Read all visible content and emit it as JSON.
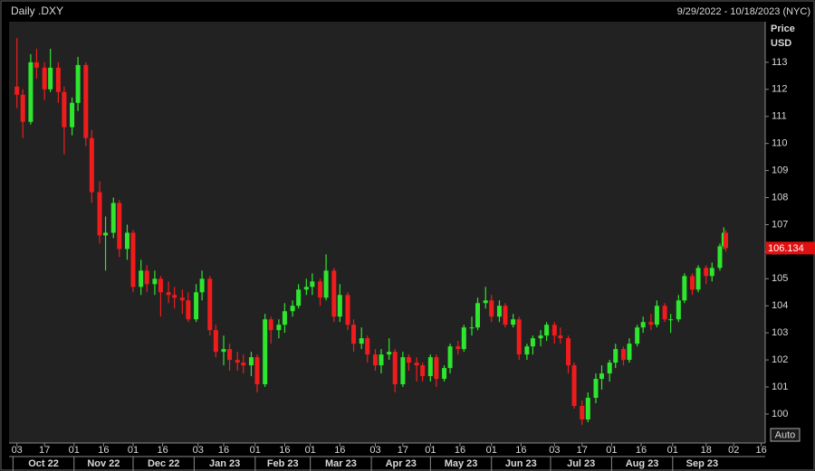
{
  "chart_data": {
    "type": "candlestick",
    "title": "Daily .DXY",
    "subtitle": "9/29/2022 - 10/18/2023 (NYC)",
    "y_label": "Price",
    "y_unit": "USD",
    "button": "Auto",
    "up_color": "#2ee62e",
    "down_color": "#f01c1c",
    "xlim": [
      "2022-09-29",
      "2023-10-18"
    ],
    "ylim": [
      98.93,
      114.5
    ],
    "yticks": [
      100,
      101,
      102,
      103,
      104,
      105,
      106,
      107,
      108,
      109,
      110,
      111,
      112,
      113
    ],
    "xticks": [
      {
        "value": "2022-10-03",
        "label": "03"
      },
      {
        "value": "2022-10-17",
        "label": "17"
      },
      {
        "value": "2022-11-01",
        "label": "01"
      },
      {
        "value": "2022-11-16",
        "label": "16"
      },
      {
        "value": "2022-12-01",
        "label": "01"
      },
      {
        "value": "2022-12-16",
        "label": "16"
      },
      {
        "value": "2023-01-03",
        "label": "03"
      },
      {
        "value": "2023-01-16",
        "label": "16"
      },
      {
        "value": "2023-02-01",
        "label": "01"
      },
      {
        "value": "2023-02-16",
        "label": "16"
      },
      {
        "value": "2023-03-01",
        "label": "01"
      },
      {
        "value": "2023-03-16",
        "label": "16"
      },
      {
        "value": "2023-04-03",
        "label": "03"
      },
      {
        "value": "2023-04-17",
        "label": "17"
      },
      {
        "value": "2023-05-01",
        "label": "01"
      },
      {
        "value": "2023-05-16",
        "label": "16"
      },
      {
        "value": "2023-06-01",
        "label": "01"
      },
      {
        "value": "2023-06-16",
        "label": "16"
      },
      {
        "value": "2023-07-03",
        "label": "03"
      },
      {
        "value": "2023-07-17",
        "label": "17"
      },
      {
        "value": "2023-08-01",
        "label": "01"
      },
      {
        "value": "2023-08-16",
        "label": "16"
      },
      {
        "value": "2023-09-01",
        "label": "01"
      },
      {
        "value": "2023-09-18",
        "label": "18"
      },
      {
        "value": "2023-10-02",
        "label": "02"
      },
      {
        "value": "2023-10-16",
        "label": "16"
      }
    ],
    "months": [
      {
        "value": "2022-10",
        "label": "Oct 22"
      },
      {
        "value": "2022-11",
        "label": "Nov 22"
      },
      {
        "value": "2022-12",
        "label": "Dec 22"
      },
      {
        "value": "2023-01",
        "label": "Jan 23"
      },
      {
        "value": "2023-02",
        "label": "Feb 23"
      },
      {
        "value": "2023-03",
        "label": "Mar 23"
      },
      {
        "value": "2023-04",
        "label": "Apr 23"
      },
      {
        "value": "2023-05",
        "label": "May 23"
      },
      {
        "value": "2023-06",
        "label": "Jun 23"
      },
      {
        "value": "2023-07",
        "label": "Jul 23"
      },
      {
        "value": "2023-08",
        "label": "Aug 23"
      },
      {
        "value": "2023-09",
        "label": "Sep 23"
      }
    ],
    "x": [
      "2022-10-03",
      "2022-10-06",
      "2022-10-10",
      "2022-10-13",
      "2022-10-17",
      "2022-10-20",
      "2022-10-24",
      "2022-10-27",
      "2022-10-31",
      "2022-11-03",
      "2022-11-07",
      "2022-11-10",
      "2022-11-14",
      "2022-11-17",
      "2022-11-21",
      "2022-11-24",
      "2022-11-28",
      "2022-12-01",
      "2022-12-05",
      "2022-12-08",
      "2022-12-12",
      "2022-12-15",
      "2022-12-19",
      "2022-12-22",
      "2022-12-26",
      "2022-12-29",
      "2023-01-02",
      "2023-01-05",
      "2023-01-09",
      "2023-01-12",
      "2023-01-16",
      "2023-01-19",
      "2023-01-23",
      "2023-01-26",
      "2023-01-30",
      "2023-02-02",
      "2023-02-06",
      "2023-02-09",
      "2023-02-13",
      "2023-02-16",
      "2023-02-20",
      "2023-02-23",
      "2023-02-27",
      "2023-03-02",
      "2023-03-06",
      "2023-03-09",
      "2023-03-13",
      "2023-03-16",
      "2023-03-20",
      "2023-03-23",
      "2023-03-27",
      "2023-03-30",
      "2023-04-03",
      "2023-04-06",
      "2023-04-10",
      "2023-04-13",
      "2023-04-17",
      "2023-04-20",
      "2023-04-24",
      "2023-04-27",
      "2023-05-01",
      "2023-05-04",
      "2023-05-08",
      "2023-05-11",
      "2023-05-15",
      "2023-05-18",
      "2023-05-22",
      "2023-05-25",
      "2023-05-29",
      "2023-06-01",
      "2023-06-05",
      "2023-06-08",
      "2023-06-12",
      "2023-06-15",
      "2023-06-19",
      "2023-06-22",
      "2023-06-26",
      "2023-06-29",
      "2023-07-03",
      "2023-07-06",
      "2023-07-10",
      "2023-07-13",
      "2023-07-17",
      "2023-07-20",
      "2023-07-24",
      "2023-07-27",
      "2023-07-31",
      "2023-08-03",
      "2023-08-07",
      "2023-08-10",
      "2023-08-14",
      "2023-08-17",
      "2023-08-21",
      "2023-08-24",
      "2023-08-28",
      "2023-08-31",
      "2023-09-04",
      "2023-09-07",
      "2023-09-11",
      "2023-09-14",
      "2023-09-18",
      "2023-09-21",
      "2023-09-25",
      "2023-09-27",
      "2023-09-28"
    ],
    "open": [
      112.1,
      111.8,
      110.8,
      113.0,
      112.8,
      112.0,
      112.8,
      111.9,
      110.6,
      111.5,
      112.9,
      110.2,
      108.2,
      106.6,
      106.7,
      107.8,
      106.1,
      106.7,
      104.7,
      105.3,
      104.8,
      105.0,
      104.5,
      104.4,
      104.3,
      104.2,
      103.5,
      104.5,
      105.0,
      103.1,
      102.3,
      102.4,
      102.0,
      101.9,
      101.8,
      102.1,
      101.1,
      103.5,
      103.1,
      103.3,
      103.8,
      104.0,
      104.6,
      104.7,
      104.9,
      104.3,
      105.3,
      103.6,
      104.4,
      103.3,
      102.6,
      102.8,
      102.2,
      101.8,
      102.2,
      102.3,
      101.1,
      102.1,
      101.9,
      101.8,
      101.4,
      102.1,
      101.3,
      101.7,
      102.5,
      102.4,
      103.2,
      103.2,
      104.1,
      104.2,
      103.6,
      104.0,
      103.3,
      103.5,
      102.2,
      102.5,
      102.8,
      102.9,
      103.3,
      102.9,
      102.8,
      101.8,
      100.3,
      99.8,
      100.6,
      101.3,
      101.5,
      101.9,
      102.4,
      102.0,
      102.6,
      103.2,
      103.4,
      103.3,
      104.0,
      103.5,
      103.5,
      104.2,
      105.1,
      104.6,
      105.4,
      105.1,
      105.4,
      106.2,
      106.7
    ],
    "high": [
      113.9,
      112.0,
      113.3,
      113.5,
      113.0,
      113.5,
      113.0,
      112.1,
      111.7,
      113.2,
      113.0,
      110.5,
      108.6,
      107.3,
      108.0,
      107.9,
      107.0,
      106.8,
      105.7,
      105.5,
      105.3,
      105.1,
      104.9,
      104.7,
      104.6,
      104.5,
      104.8,
      105.3,
      105.1,
      103.3,
      102.9,
      102.6,
      102.3,
      102.2,
      102.3,
      102.2,
      103.7,
      103.6,
      103.5,
      104.1,
      104.2,
      104.8,
      105.0,
      105.2,
      105.0,
      105.9,
      105.4,
      104.8,
      104.5,
      103.5,
      103.2,
      102.9,
      102.4,
      102.4,
      102.8,
      102.4,
      102.3,
      102.2,
      102.1,
      101.9,
      102.2,
      102.2,
      101.8,
      102.6,
      102.7,
      103.3,
      103.6,
      104.3,
      104.7,
      104.4,
      104.2,
      104.1,
      103.7,
      103.6,
      102.6,
      102.9,
      103.1,
      103.4,
      103.4,
      103.2,
      102.9,
      101.9,
      100.5,
      100.8,
      101.5,
      101.8,
      102.0,
      102.6,
      102.5,
      102.8,
      103.3,
      103.6,
      103.7,
      104.2,
      104.1,
      103.7,
      104.4,
      105.2,
      105.2,
      105.5,
      105.5,
      105.6,
      106.3,
      106.9,
      106.8
    ],
    "low": [
      111.3,
      110.2,
      110.7,
      112.4,
      111.6,
      111.9,
      111.5,
      109.6,
      110.3,
      111.2,
      109.9,
      107.8,
      106.3,
      105.3,
      106.5,
      105.8,
      105.7,
      104.5,
      104.4,
      104.5,
      104.4,
      103.6,
      104.1,
      103.9,
      103.7,
      103.4,
      103.4,
      104.2,
      102.9,
      102.1,
      101.8,
      101.6,
      101.6,
      101.5,
      101.4,
      100.8,
      101.0,
      102.6,
      102.8,
      103.0,
      103.6,
      103.9,
      104.4,
      104.4,
      104.0,
      104.2,
      103.4,
      103.4,
      103.1,
      102.3,
      102.4,
      101.9,
      101.6,
      101.5,
      102.0,
      100.8,
      101.0,
      101.6,
      101.2,
      101.2,
      101.2,
      101.0,
      101.2,
      101.5,
      102.2,
      102.3,
      102.9,
      103.1,
      103.9,
      103.4,
      103.4,
      103.2,
      103.2,
      102.0,
      102.0,
      102.2,
      102.5,
      102.7,
      102.6,
      102.6,
      101.5,
      100.2,
      99.6,
      99.7,
      100.4,
      100.9,
      101.2,
      101.7,
      101.8,
      101.9,
      102.5,
      103.0,
      103.1,
      103.2,
      103.4,
      103.0,
      103.4,
      104.1,
      104.4,
      104.5,
      104.8,
      104.9,
      105.3,
      106.1,
      106.0
    ],
    "close": [
      111.8,
      110.8,
      113.0,
      112.8,
      112.0,
      112.8,
      111.9,
      110.6,
      111.5,
      112.9,
      110.2,
      108.2,
      106.6,
      106.7,
      107.8,
      106.1,
      106.7,
      104.7,
      105.3,
      104.8,
      105.0,
      104.5,
      104.4,
      104.3,
      104.2,
      103.5,
      104.5,
      105.0,
      103.1,
      102.3,
      102.4,
      102.0,
      101.9,
      101.8,
      102.1,
      101.1,
      103.5,
      103.1,
      103.3,
      103.8,
      104.0,
      104.6,
      104.7,
      104.9,
      104.3,
      105.3,
      103.6,
      104.4,
      103.3,
      102.6,
      102.8,
      102.2,
      101.8,
      102.2,
      102.3,
      101.1,
      102.1,
      101.9,
      101.8,
      101.4,
      102.1,
      101.3,
      101.7,
      102.5,
      102.4,
      103.2,
      103.2,
      104.1,
      104.2,
      103.6,
      104.0,
      103.3,
      103.5,
      102.2,
      102.5,
      102.8,
      102.9,
      103.3,
      102.9,
      102.8,
      101.8,
      100.3,
      99.8,
      100.6,
      101.3,
      101.5,
      101.9,
      102.4,
      102.0,
      102.6,
      103.2,
      103.4,
      103.3,
      104.0,
      103.5,
      103.5,
      104.2,
      105.1,
      104.6,
      105.4,
      105.1,
      105.4,
      106.2,
      106.7,
      106.134
    ]
  }
}
